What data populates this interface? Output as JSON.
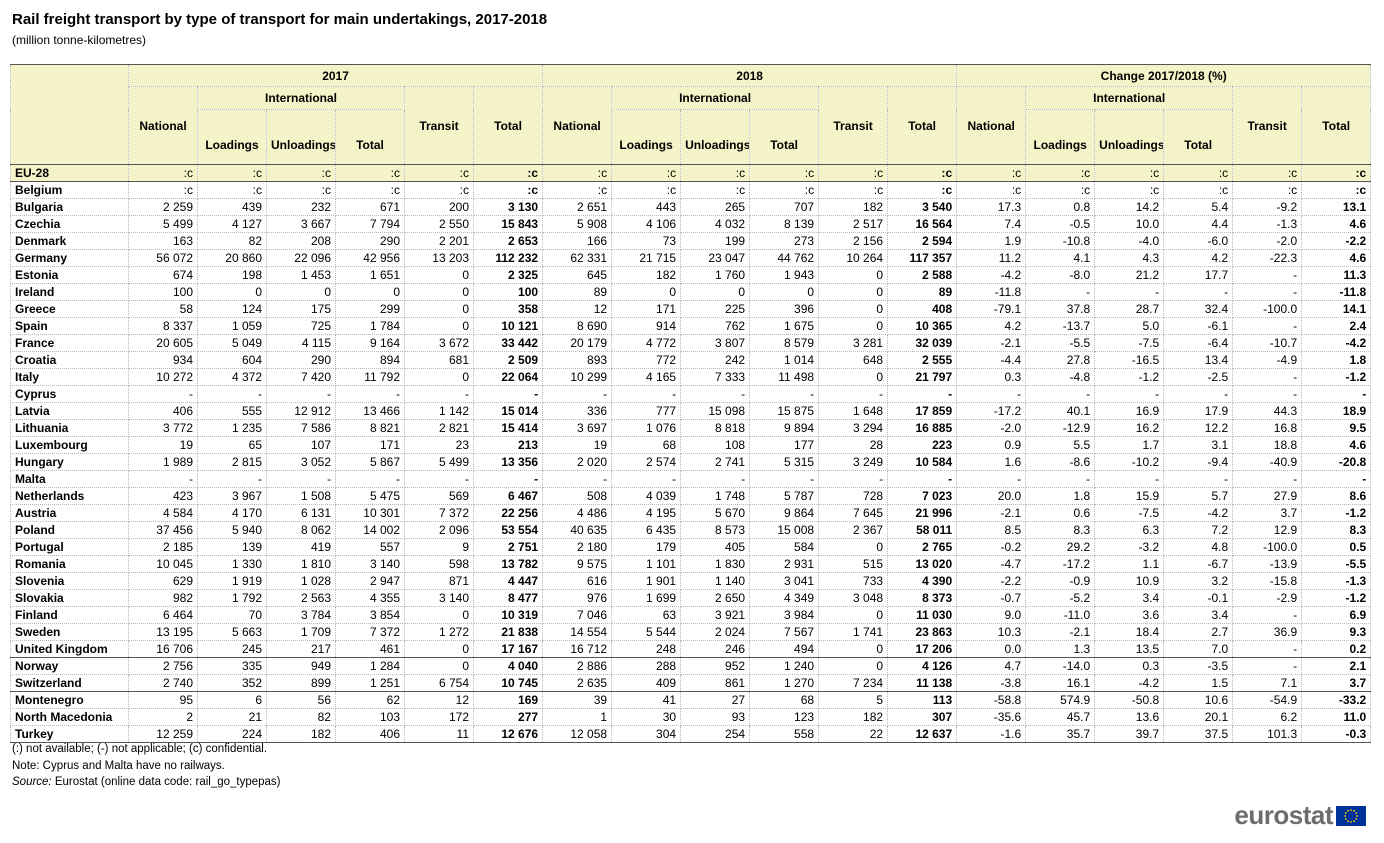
{
  "header": {
    "title": "Rail freight transport by type of transport for main undertakings, 2017-2018",
    "subtitle": "(million tonne-kilometres)"
  },
  "table": {
    "groups": [
      "2017",
      "2018",
      "Change 2017/2018 (%)"
    ],
    "international": "International",
    "columns": [
      "National",
      "Loadings",
      "Unloadings",
      "Total",
      "Transit",
      "Total"
    ],
    "rows": [
      {
        "label": "EU-28",
        "values": [
          ":c",
          ":c",
          ":c",
          ":c",
          ":c",
          ":c",
          ":c",
          ":c",
          ":c",
          ":c",
          ":c",
          ":c",
          ":c",
          ":c",
          ":c",
          ":c",
          ":c",
          ":c"
        ]
      },
      {
        "label": "Belgium",
        "values": [
          ":c",
          ":c",
          ":c",
          ":c",
          ":c",
          ":c",
          ":c",
          ":c",
          ":c",
          ":c",
          ":c",
          ":c",
          ":c",
          ":c",
          ":c",
          ":c",
          ":c",
          ":c"
        ]
      },
      {
        "label": "Bulgaria",
        "values": [
          "2 259",
          "439",
          "232",
          "671",
          "200",
          "3 130",
          "2 651",
          "443",
          "265",
          "707",
          "182",
          "3 540",
          "17.3",
          "0.8",
          "14.2",
          "5.4",
          "-9.2",
          "13.1"
        ]
      },
      {
        "label": "Czechia",
        "values": [
          "5 499",
          "4 127",
          "3 667",
          "7 794",
          "2 550",
          "15 843",
          "5 908",
          "4 106",
          "4 032",
          "8 139",
          "2 517",
          "16 564",
          "7.4",
          "-0.5",
          "10.0",
          "4.4",
          "-1.3",
          "4.6"
        ]
      },
      {
        "label": "Denmark",
        "values": [
          "163",
          "82",
          "208",
          "290",
          "2 201",
          "2 653",
          "166",
          "73",
          "199",
          "273",
          "2 156",
          "2 594",
          "1.9",
          "-10.8",
          "-4.0",
          "-6.0",
          "-2.0",
          "-2.2"
        ]
      },
      {
        "label": "Germany",
        "values": [
          "56 072",
          "20 860",
          "22 096",
          "42 956",
          "13 203",
          "112 232",
          "62 331",
          "21 715",
          "23 047",
          "44 762",
          "10 264",
          "117 357",
          "11.2",
          "4.1",
          "4.3",
          "4.2",
          "-22.3",
          "4.6"
        ]
      },
      {
        "label": "Estonia",
        "values": [
          "674",
          "198",
          "1 453",
          "1 651",
          "0",
          "2 325",
          "645",
          "182",
          "1 760",
          "1 943",
          "0",
          "2 588",
          "-4.2",
          "-8.0",
          "21.2",
          "17.7",
          "-",
          "11.3"
        ]
      },
      {
        "label": "Ireland",
        "values": [
          "100",
          "0",
          "0",
          "0",
          "0",
          "100",
          "89",
          "0",
          "0",
          "0",
          "0",
          "89",
          "-11.8",
          "-",
          "-",
          "-",
          "-",
          "-11.8"
        ]
      },
      {
        "label": "Greece",
        "values": [
          "58",
          "124",
          "175",
          "299",
          "0",
          "358",
          "12",
          "171",
          "225",
          "396",
          "0",
          "408",
          "-79.1",
          "37.8",
          "28.7",
          "32.4",
          "-100.0",
          "14.1"
        ]
      },
      {
        "label": "Spain",
        "values": [
          "8 337",
          "1 059",
          "725",
          "1 784",
          "0",
          "10 121",
          "8 690",
          "914",
          "762",
          "1 675",
          "0",
          "10 365",
          "4.2",
          "-13.7",
          "5.0",
          "-6.1",
          "-",
          "2.4"
        ]
      },
      {
        "label": "France",
        "values": [
          "20 605",
          "5 049",
          "4 115",
          "9 164",
          "3 672",
          "33 442",
          "20 179",
          "4 772",
          "3 807",
          "8 579",
          "3 281",
          "32 039",
          "-2.1",
          "-5.5",
          "-7.5",
          "-6.4",
          "-10.7",
          "-4.2"
        ]
      },
      {
        "label": "Croatia",
        "values": [
          "934",
          "604",
          "290",
          "894",
          "681",
          "2 509",
          "893",
          "772",
          "242",
          "1 014",
          "648",
          "2 555",
          "-4.4",
          "27.8",
          "-16.5",
          "13.4",
          "-4.9",
          "1.8"
        ]
      },
      {
        "label": "Italy",
        "values": [
          "10 272",
          "4 372",
          "7 420",
          "11 792",
          "0",
          "22 064",
          "10 299",
          "4 165",
          "7 333",
          "11 498",
          "0",
          "21 797",
          "0.3",
          "-4.8",
          "-1.2",
          "-2.5",
          "-",
          "-1.2"
        ]
      },
      {
        "label": "Cyprus",
        "values": [
          "-",
          "-",
          "-",
          "-",
          "-",
          "-",
          "-",
          "-",
          "-",
          "-",
          "-",
          "-",
          "-",
          "-",
          "-",
          "-",
          "-",
          "-"
        ]
      },
      {
        "label": "Latvia",
        "values": [
          "406",
          "555",
          "12 912",
          "13 466",
          "1 142",
          "15 014",
          "336",
          "777",
          "15 098",
          "15 875",
          "1 648",
          "17 859",
          "-17.2",
          "40.1",
          "16.9",
          "17.9",
          "44.3",
          "18.9"
        ]
      },
      {
        "label": "Lithuania",
        "values": [
          "3 772",
          "1 235",
          "7 586",
          "8 821",
          "2 821",
          "15 414",
          "3 697",
          "1 076",
          "8 818",
          "9 894",
          "3 294",
          "16 885",
          "-2.0",
          "-12.9",
          "16.2",
          "12.2",
          "16.8",
          "9.5"
        ]
      },
      {
        "label": "Luxembourg",
        "values": [
          "19",
          "65",
          "107",
          "171",
          "23",
          "213",
          "19",
          "68",
          "108",
          "177",
          "28",
          "223",
          "0.9",
          "5.5",
          "1.7",
          "3.1",
          "18.8",
          "4.6"
        ]
      },
      {
        "label": "Hungary",
        "values": [
          "1 989",
          "2 815",
          "3 052",
          "5 867",
          "5 499",
          "13 356",
          "2 020",
          "2 574",
          "2 741",
          "5 315",
          "3 249",
          "10 584",
          "1.6",
          "-8.6",
          "-10.2",
          "-9.4",
          "-40.9",
          "-20.8"
        ]
      },
      {
        "label": "Malta",
        "values": [
          "-",
          "-",
          "-",
          "-",
          "-",
          "-",
          "-",
          "-",
          "-",
          "-",
          "-",
          "-",
          "-",
          "-",
          "-",
          "-",
          "-",
          "-"
        ]
      },
      {
        "label": "Netherlands",
        "values": [
          "423",
          "3 967",
          "1 508",
          "5 475",
          "569",
          "6 467",
          "508",
          "4 039",
          "1 748",
          "5 787",
          "728",
          "7 023",
          "20.0",
          "1.8",
          "15.9",
          "5.7",
          "27.9",
          "8.6"
        ]
      },
      {
        "label": "Austria",
        "values": [
          "4 584",
          "4 170",
          "6 131",
          "10 301",
          "7 372",
          "22 256",
          "4 486",
          "4 195",
          "5 670",
          "9 864",
          "7 645",
          "21 996",
          "-2.1",
          "0.6",
          "-7.5",
          "-4.2",
          "3.7",
          "-1.2"
        ]
      },
      {
        "label": "Poland",
        "values": [
          "37 456",
          "5 940",
          "8 062",
          "14 002",
          "2 096",
          "53 554",
          "40 635",
          "6 435",
          "8 573",
          "15 008",
          "2 367",
          "58 011",
          "8.5",
          "8.3",
          "6.3",
          "7.2",
          "12.9",
          "8.3"
        ]
      },
      {
        "label": "Portugal",
        "values": [
          "2 185",
          "139",
          "419",
          "557",
          "9",
          "2 751",
          "2 180",
          "179",
          "405",
          "584",
          "0",
          "2 765",
          "-0.2",
          "29.2",
          "-3.2",
          "4.8",
          "-100.0",
          "0.5"
        ]
      },
      {
        "label": "Romania",
        "values": [
          "10 045",
          "1 330",
          "1 810",
          "3 140",
          "598",
          "13 782",
          "9 575",
          "1 101",
          "1 830",
          "2 931",
          "515",
          "13 020",
          "-4.7",
          "-17.2",
          "1.1",
          "-6.7",
          "-13.9",
          "-5.5"
        ]
      },
      {
        "label": "Slovenia",
        "values": [
          "629",
          "1 919",
          "1 028",
          "2 947",
          "871",
          "4 447",
          "616",
          "1 901",
          "1 140",
          "3 041",
          "733",
          "4 390",
          "-2.2",
          "-0.9",
          "10.9",
          "3.2",
          "-15.8",
          "-1.3"
        ]
      },
      {
        "label": "Slovakia",
        "values": [
          "982",
          "1 792",
          "2 563",
          "4 355",
          "3 140",
          "8 477",
          "976",
          "1 699",
          "2 650",
          "4 349",
          "3 048",
          "8 373",
          "-0.7",
          "-5.2",
          "3.4",
          "-0.1",
          "-2.9",
          "-1.2"
        ]
      },
      {
        "label": "Finland",
        "values": [
          "6 464",
          "70",
          "3 784",
          "3 854",
          "0",
          "10 319",
          "7 046",
          "63",
          "3 921",
          "3 984",
          "0",
          "11 030",
          "9.0",
          "-11.0",
          "3.6",
          "3.4",
          "-",
          "6.9"
        ]
      },
      {
        "label": "Sweden",
        "values": [
          "13 195",
          "5 663",
          "1 709",
          "7 372",
          "1 272",
          "21 838",
          "14 554",
          "5 544",
          "2 024",
          "7 567",
          "1 741",
          "23 863",
          "10.3",
          "-2.1",
          "18.4",
          "2.7",
          "36.9",
          "9.3"
        ]
      },
      {
        "label": "United Kingdom",
        "values": [
          "16 706",
          "245",
          "217",
          "461",
          "0",
          "17 167",
          "16 712",
          "248",
          "246",
          "494",
          "0",
          "17 206",
          "0.0",
          "1.3",
          "13.5",
          "7.0",
          "-",
          "0.2"
        ]
      },
      {
        "label": "Norway",
        "values": [
          "2 756",
          "335",
          "949",
          "1 284",
          "0",
          "4 040",
          "2 886",
          "288",
          "952",
          "1 240",
          "0",
          "4 126",
          "4.7",
          "-14.0",
          "0.3",
          "-3.5",
          "-",
          "2.1"
        ]
      },
      {
        "label": "Switzerland",
        "values": [
          "2 740",
          "352",
          "899",
          "1 251",
          "6 754",
          "10 745",
          "2 635",
          "409",
          "861",
          "1 270",
          "7 234",
          "11 138",
          "-3.8",
          "16.1",
          "-4.2",
          "1.5",
          "7.1",
          "3.7"
        ]
      },
      {
        "label": "Montenegro",
        "values": [
          "95",
          "6",
          "56",
          "62",
          "12",
          "169",
          "39",
          "41",
          "27",
          "68",
          "5",
          "113",
          "-58.8",
          "574.9",
          "-50.8",
          "10.6",
          "-54.9",
          "-33.2"
        ]
      },
      {
        "label": "North Macedonia",
        "values": [
          "2",
          "21",
          "82",
          "103",
          "172",
          "277",
          "1",
          "30",
          "93",
          "123",
          "182",
          "307",
          "-35.6",
          "45.7",
          "13.6",
          "20.1",
          "6.2",
          "11.0"
        ]
      },
      {
        "label": "Turkey",
        "values": [
          "12 259",
          "224",
          "182",
          "406",
          "11",
          "12 676",
          "12 058",
          "304",
          "254",
          "558",
          "22",
          "12 637",
          "-1.6",
          "35.7",
          "39.7",
          "37.5",
          "101.3",
          "-0.3"
        ]
      }
    ]
  },
  "notes": {
    "line1": "(:) not available; (-) not applicable; (c) confidential.",
    "line2": "Note: Cyprus and Malta have no railways.",
    "source_label": "Source:",
    "source": "Eurostat (online data code: rail_go_typepas)"
  },
  "logo": "eurostat"
}
